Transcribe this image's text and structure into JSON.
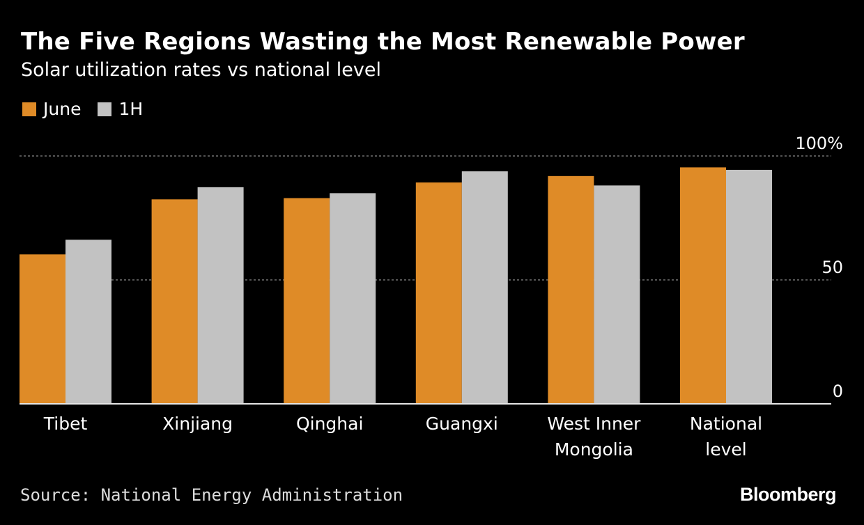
{
  "colors": {
    "background": "#000000",
    "june": "#df8b27",
    "h1": "#c2c2c2",
    "grid": "#888888",
    "text": "#ffffff"
  },
  "header": {
    "title": "The Five Regions Wasting the Most Renewable Power",
    "subtitle": "Solar utilization rates vs national level"
  },
  "footer": {
    "source": "Source: National Energy Administration",
    "logo": "Bloomberg"
  },
  "chart_data": {
    "type": "bar",
    "title": "The Five Regions Wasting the Most Renewable Power",
    "subtitle": "Solar utilization rates vs national level",
    "xlabel": "",
    "ylabel": "",
    "ylim": [
      0,
      100
    ],
    "yticks": [
      {
        "value": 0,
        "label": "0"
      },
      {
        "value": 50,
        "label": "50"
      },
      {
        "value": 100,
        "label": "100%"
      }
    ],
    "grid": true,
    "legend_position": "top-left",
    "categories": [
      [
        "Tibet"
      ],
      [
        "Xinjiang"
      ],
      [
        "Qinghai"
      ],
      [
        "Guangxi"
      ],
      [
        "West Inner",
        "Mongolia"
      ],
      [
        "National",
        "level"
      ]
    ],
    "series": [
      {
        "name": "June",
        "color": "#df8b27",
        "values": [
          60.3,
          82.5,
          83.0,
          89.3,
          91.9,
          95.4
        ]
      },
      {
        "name": "1H",
        "color": "#c2c2c2",
        "values": [
          66.2,
          87.4,
          85.0,
          93.8,
          88.1,
          94.4
        ]
      }
    ]
  }
}
